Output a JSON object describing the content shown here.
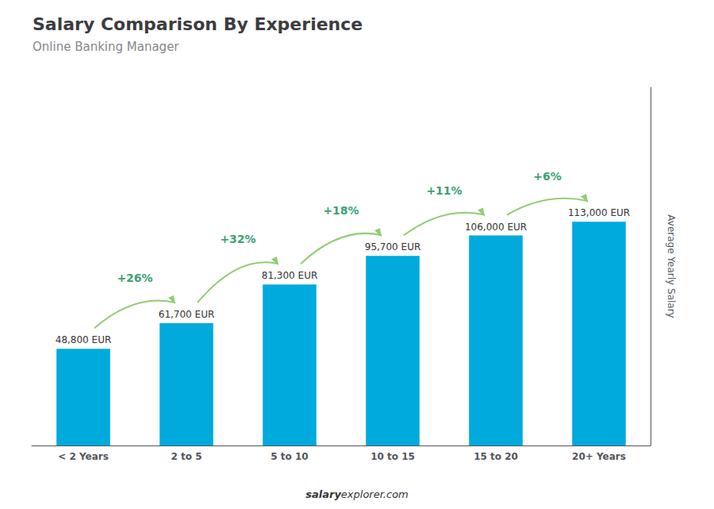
{
  "chart_data": {
    "type": "bar",
    "title": "Salary Comparison By Experience",
    "subtitle": "Online Banking Manager",
    "categories": [
      "< 2 Years",
      "2 to 5",
      "5 to 10",
      "10 to 15",
      "15 to 20",
      "20+ Years"
    ],
    "values": [
      48800,
      61700,
      81300,
      95700,
      106000,
      113000
    ],
    "value_labels": [
      "48,800 EUR",
      "61,700 EUR",
      "81,300 EUR",
      "95,700 EUR",
      "106,000 EUR",
      "113,000 EUR"
    ],
    "data_labels": true,
    "color": "#00aadd",
    "ylabel": "Average Yearly Salary",
    "ylim": [
      0,
      180800
    ],
    "tick_labels": "x",
    "grid": false,
    "annotations": [
      "+26%",
      "+32%",
      "+18%",
      "+11%",
      "+6%"
    ],
    "footer": [
      "salary",
      "explorer.com"
    ]
  }
}
